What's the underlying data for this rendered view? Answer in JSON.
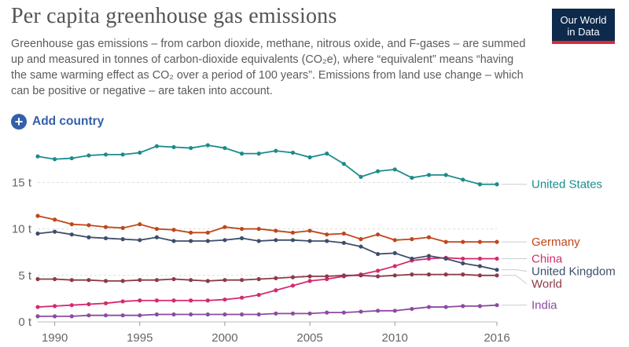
{
  "header": {
    "title": "Per capita greenhouse gas emissions",
    "subtitle": "Greenhouse gas emissions – from carbon dioxide, methane, nitrous oxide, and F-gases – are summed up and measured in tonnes of carbon-dioxide equivalents (CO₂e), where “equivalent” means “having the same warming effect as CO₂ over a period of 100 years”. Emissions from land use change – which can be positive or negative – are taken into account.",
    "logo_line1": "Our World",
    "logo_line2": "in Data"
  },
  "controls": {
    "add_country_label": "Add country"
  },
  "chart_data": {
    "type": "line",
    "title": "Per capita greenhouse gas emissions",
    "xlabel": "",
    "ylabel": "",
    "xlim": [
      1989,
      2016
    ],
    "ylim": [
      0,
      19
    ],
    "yticks": [
      {
        "value": 0,
        "label": "0 t"
      },
      {
        "value": 5,
        "label": "5 t"
      },
      {
        "value": 10,
        "label": "10 t"
      },
      {
        "value": 15,
        "label": "15 t"
      }
    ],
    "xticks": [
      1990,
      1995,
      2000,
      2005,
      2010,
      2016
    ],
    "x": [
      1989,
      1990,
      1991,
      1992,
      1993,
      1994,
      1995,
      1996,
      1997,
      1998,
      1999,
      2000,
      2001,
      2002,
      2003,
      2004,
      2005,
      2006,
      2007,
      2008,
      2009,
      2010,
      2011,
      2012,
      2013,
      2014,
      2015,
      2016
    ],
    "series": [
      {
        "name": "United States",
        "color": "#1a8c8c",
        "values": [
          17.8,
          17.5,
          17.6,
          17.9,
          18.0,
          18.0,
          18.2,
          18.9,
          18.8,
          18.7,
          19.0,
          18.7,
          18.1,
          18.1,
          18.4,
          18.2,
          17.7,
          18.1,
          17.0,
          15.6,
          16.2,
          16.4,
          15.5,
          15.8,
          15.8,
          15.3,
          14.8,
          14.8
        ]
      },
      {
        "name": "Germany",
        "color": "#c0461a",
        "values": [
          11.4,
          11.0,
          10.5,
          10.4,
          10.2,
          10.1,
          10.5,
          10.0,
          9.9,
          9.6,
          9.6,
          10.2,
          10.0,
          10.0,
          9.8,
          9.6,
          9.8,
          9.4,
          9.5,
          8.9,
          9.4,
          8.8,
          8.9,
          9.1,
          8.6,
          8.6,
          8.6,
          8.6
        ]
      },
      {
        "name": "China",
        "color": "#d42a6e",
        "values": [
          1.6,
          1.7,
          1.8,
          1.9,
          2.0,
          2.2,
          2.3,
          2.3,
          2.3,
          2.3,
          2.3,
          2.4,
          2.6,
          2.9,
          3.4,
          3.9,
          4.4,
          4.6,
          4.9,
          5.1,
          5.5,
          6.0,
          6.6,
          6.8,
          6.9,
          6.8,
          6.8,
          6.8
        ]
      },
      {
        "name": "United Kingdom",
        "color": "#3d4e6b",
        "values": [
          9.5,
          9.7,
          9.4,
          9.1,
          9.0,
          8.9,
          8.8,
          9.1,
          8.7,
          8.7,
          8.7,
          8.8,
          9.0,
          8.7,
          8.8,
          8.8,
          8.7,
          8.7,
          8.5,
          8.1,
          7.3,
          7.4,
          6.8,
          7.1,
          6.8,
          6.3,
          6.0,
          5.6
        ]
      },
      {
        "name": "World",
        "color": "#8b3a4a",
        "values": [
          4.6,
          4.6,
          4.5,
          4.5,
          4.4,
          4.4,
          4.5,
          4.5,
          4.6,
          4.5,
          4.4,
          4.5,
          4.5,
          4.6,
          4.7,
          4.8,
          4.9,
          4.9,
          5.0,
          5.0,
          4.9,
          5.0,
          5.1,
          5.1,
          5.1,
          5.1,
          5.0,
          5.0
        ]
      },
      {
        "name": "India",
        "color": "#8c4ba0",
        "values": [
          0.6,
          0.6,
          0.6,
          0.7,
          0.7,
          0.7,
          0.7,
          0.8,
          0.8,
          0.8,
          0.8,
          0.8,
          0.8,
          0.8,
          0.9,
          0.9,
          0.9,
          1.0,
          1.0,
          1.1,
          1.2,
          1.2,
          1.4,
          1.6,
          1.6,
          1.7,
          1.7,
          1.8
        ]
      }
    ]
  }
}
